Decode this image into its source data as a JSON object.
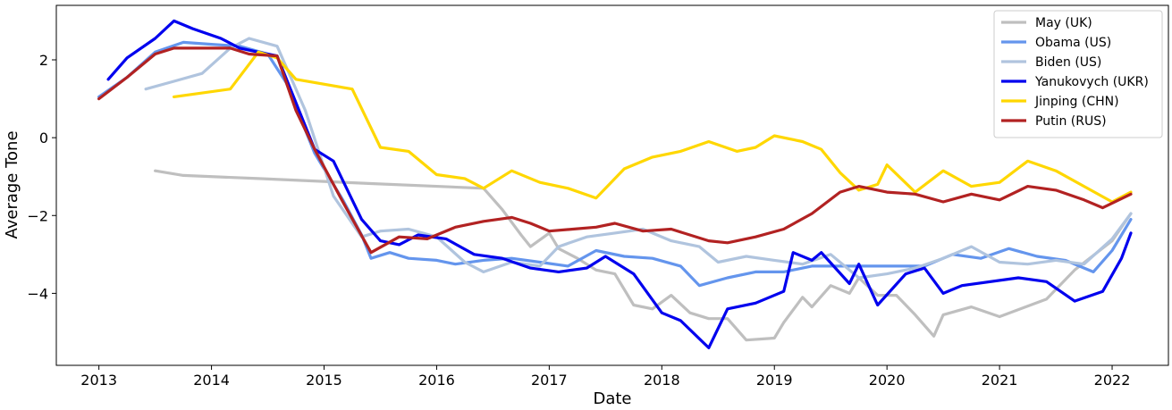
{
  "chart_data": {
    "type": "line",
    "title": "",
    "xlabel": "Date",
    "ylabel": "Average Tone",
    "xlim": [
      "2012-08-15",
      "2022-07-01"
    ],
    "ylim": [
      -5.85,
      3.4
    ],
    "x_ticks": [
      "2013",
      "2014",
      "2015",
      "2016",
      "2017",
      "2018",
      "2019",
      "2020",
      "2021",
      "2022"
    ],
    "y_ticks": [
      2,
      0,
      -2,
      -4
    ],
    "y_tick_labels": [
      "2",
      "0",
      "−2",
      "−4"
    ],
    "grid": false,
    "legend_position": "top-right",
    "series": [
      {
        "name": "May (UK)",
        "color": "#bfbfbf",
        "points": [
          [
            "2013-07",
            -0.85
          ],
          [
            "2013-10",
            -0.97
          ],
          [
            "2014-06",
            -1.05
          ],
          [
            "2015-06",
            -1.18
          ],
          [
            "2016-06",
            -1.3
          ],
          [
            "2016-08",
            -1.85
          ],
          [
            "2016-10",
            -2.5
          ],
          [
            "2016-11",
            -2.8
          ],
          [
            "2017-01",
            -2.45
          ],
          [
            "2017-02",
            -2.85
          ],
          [
            "2017-04",
            -3.1
          ],
          [
            "2017-06",
            -3.4
          ],
          [
            "2017-08",
            -3.5
          ],
          [
            "2017-10",
            -4.3
          ],
          [
            "2017-12",
            -4.4
          ],
          [
            "2018-02",
            -4.05
          ],
          [
            "2018-04",
            -4.5
          ],
          [
            "2018-06",
            -4.65
          ],
          [
            "2018-08",
            -4.65
          ],
          [
            "2018-10",
            -5.2
          ],
          [
            "2019-01",
            -5.15
          ],
          [
            "2019-02",
            -4.75
          ],
          [
            "2019-04",
            -4.1
          ],
          [
            "2019-05",
            -4.35
          ],
          [
            "2019-07",
            -3.8
          ],
          [
            "2019-09",
            -4.0
          ],
          [
            "2019-10",
            -3.6
          ],
          [
            "2019-12",
            -4.05
          ],
          [
            "2020-02",
            -4.05
          ],
          [
            "2020-04",
            -4.55
          ],
          [
            "2020-06",
            -5.1
          ],
          [
            "2020-07",
            -4.55
          ],
          [
            "2020-10",
            -4.35
          ],
          [
            "2021-01",
            -4.6
          ],
          [
            "2021-06",
            -4.15
          ],
          [
            "2021-09",
            -3.4
          ],
          [
            "2022-01",
            -2.65
          ],
          [
            "2022-03",
            -1.95
          ]
        ]
      },
      {
        "name": "Obama (US)",
        "color": "#6495ed",
        "points": [
          [
            "2013-01",
            1.05
          ],
          [
            "2013-04",
            1.55
          ],
          [
            "2013-07",
            2.2
          ],
          [
            "2013-10",
            2.45
          ],
          [
            "2014-01",
            2.4
          ],
          [
            "2014-04",
            2.35
          ],
          [
            "2014-07",
            2.15
          ],
          [
            "2014-09",
            1.4
          ],
          [
            "2014-12",
            -0.4
          ],
          [
            "2015-03",
            -1.6
          ],
          [
            "2015-05",
            -2.5
          ],
          [
            "2015-06",
            -3.1
          ],
          [
            "2015-08",
            -2.95
          ],
          [
            "2015-10",
            -3.1
          ],
          [
            "2016-01",
            -3.15
          ],
          [
            "2016-03",
            -3.25
          ],
          [
            "2016-06",
            -3.15
          ],
          [
            "2016-09",
            -3.1
          ],
          [
            "2016-12",
            -3.2
          ],
          [
            "2017-03",
            -3.3
          ],
          [
            "2017-06",
            -2.9
          ],
          [
            "2017-09",
            -3.05
          ],
          [
            "2017-12",
            -3.1
          ],
          [
            "2018-03",
            -3.3
          ],
          [
            "2018-05",
            -3.8
          ],
          [
            "2018-08",
            -3.6
          ],
          [
            "2018-11",
            -3.45
          ],
          [
            "2019-02",
            -3.45
          ],
          [
            "2019-05",
            -3.3
          ],
          [
            "2019-08",
            -3.3
          ],
          [
            "2019-11",
            -3.3
          ],
          [
            "2020-02",
            -3.3
          ],
          [
            "2020-05",
            -3.3
          ],
          [
            "2020-08",
            -3.0
          ],
          [
            "2020-11",
            -3.1
          ],
          [
            "2021-02",
            -2.85
          ],
          [
            "2021-05",
            -3.05
          ],
          [
            "2021-08",
            -3.15
          ],
          [
            "2021-11",
            -3.45
          ],
          [
            "2022-01",
            -2.9
          ],
          [
            "2022-03",
            -2.1
          ]
        ]
      },
      {
        "name": "Biden (US)",
        "color": "#b0c4de",
        "points": [
          [
            "2013-06",
            1.25
          ],
          [
            "2013-09",
            1.45
          ],
          [
            "2013-12",
            1.65
          ],
          [
            "2014-03",
            2.3
          ],
          [
            "2014-05",
            2.55
          ],
          [
            "2014-08",
            2.35
          ],
          [
            "2014-11",
            0.7
          ],
          [
            "2015-02",
            -1.5
          ],
          [
            "2015-05",
            -2.55
          ],
          [
            "2015-07",
            -2.4
          ],
          [
            "2015-10",
            -2.35
          ],
          [
            "2016-01",
            -2.55
          ],
          [
            "2016-04",
            -3.2
          ],
          [
            "2016-06",
            -3.45
          ],
          [
            "2016-09",
            -3.2
          ],
          [
            "2016-12",
            -3.3
          ],
          [
            "2017-02",
            -2.8
          ],
          [
            "2017-05",
            -2.55
          ],
          [
            "2017-08",
            -2.45
          ],
          [
            "2017-11",
            -2.35
          ],
          [
            "2018-02",
            -2.65
          ],
          [
            "2018-05",
            -2.8
          ],
          [
            "2018-07",
            -3.2
          ],
          [
            "2018-10",
            -3.05
          ],
          [
            "2019-01",
            -3.15
          ],
          [
            "2019-04",
            -3.25
          ],
          [
            "2019-07",
            -3.0
          ],
          [
            "2019-10",
            -3.6
          ],
          [
            "2020-01",
            -3.5
          ],
          [
            "2020-04",
            -3.35
          ],
          [
            "2020-07",
            -3.1
          ],
          [
            "2020-10",
            -2.8
          ],
          [
            "2021-01",
            -3.2
          ],
          [
            "2021-04",
            -3.25
          ],
          [
            "2021-07",
            -3.15
          ],
          [
            "2021-10",
            -3.25
          ],
          [
            "2022-01",
            -2.6
          ],
          [
            "2022-03",
            -1.95
          ]
        ]
      },
      {
        "name": "Yanukovych (UKR)",
        "color": "#0000ee",
        "points": [
          [
            "2013-02",
            1.5
          ],
          [
            "2013-04",
            2.05
          ],
          [
            "2013-07",
            2.55
          ],
          [
            "2013-09",
            3.0
          ],
          [
            "2013-11",
            2.8
          ],
          [
            "2014-02",
            2.55
          ],
          [
            "2014-04",
            2.3
          ],
          [
            "2014-06",
            2.2
          ],
          [
            "2014-08",
            2.1
          ],
          [
            "2014-10",
            0.9
          ],
          [
            "2014-12",
            -0.3
          ],
          [
            "2015-02",
            -0.6
          ],
          [
            "2015-05",
            -2.1
          ],
          [
            "2015-07",
            -2.65
          ],
          [
            "2015-09",
            -2.75
          ],
          [
            "2015-11",
            -2.5
          ],
          [
            "2016-02",
            -2.6
          ],
          [
            "2016-05",
            -3.0
          ],
          [
            "2016-08",
            -3.1
          ],
          [
            "2016-11",
            -3.35
          ],
          [
            "2017-02",
            -3.45
          ],
          [
            "2017-05",
            -3.35
          ],
          [
            "2017-07",
            -3.05
          ],
          [
            "2017-10",
            -3.5
          ],
          [
            "2018-01",
            -4.5
          ],
          [
            "2018-03",
            -4.7
          ],
          [
            "2018-06",
            -5.4
          ],
          [
            "2018-08",
            -4.4
          ],
          [
            "2018-11",
            -4.25
          ],
          [
            "2019-02",
            -3.95
          ],
          [
            "2019-03",
            -2.95
          ],
          [
            "2019-05",
            -3.15
          ],
          [
            "2019-06",
            -2.95
          ],
          [
            "2019-09",
            -3.75
          ],
          [
            "2019-10",
            -3.25
          ],
          [
            "2019-12",
            -4.3
          ],
          [
            "2020-03",
            -3.5
          ],
          [
            "2020-05",
            -3.35
          ],
          [
            "2020-07",
            -4.0
          ],
          [
            "2020-09",
            -3.8
          ],
          [
            "2021-03",
            -3.6
          ],
          [
            "2021-06",
            -3.7
          ],
          [
            "2021-09",
            -4.2
          ],
          [
            "2021-12",
            -3.95
          ],
          [
            "2022-02",
            -3.1
          ],
          [
            "2022-03",
            -2.45
          ]
        ]
      },
      {
        "name": "Jinping (CHN)",
        "color": "#ffd700",
        "points": [
          [
            "2013-09",
            1.05
          ],
          [
            "2014-03",
            1.25
          ],
          [
            "2014-06",
            2.2
          ],
          [
            "2014-08",
            2.05
          ],
          [
            "2014-10",
            1.5
          ],
          [
            "2015-04",
            1.25
          ],
          [
            "2015-07",
            -0.25
          ],
          [
            "2015-10",
            -0.35
          ],
          [
            "2016-01",
            -0.95
          ],
          [
            "2016-04",
            -1.05
          ],
          [
            "2016-06",
            -1.3
          ],
          [
            "2016-09",
            -0.85
          ],
          [
            "2016-12",
            -1.15
          ],
          [
            "2017-03",
            -1.3
          ],
          [
            "2017-06",
            -1.55
          ],
          [
            "2017-09",
            -0.8
          ],
          [
            "2017-12",
            -0.5
          ],
          [
            "2018-03",
            -0.35
          ],
          [
            "2018-06",
            -0.1
          ],
          [
            "2018-09",
            -0.35
          ],
          [
            "2018-11",
            -0.25
          ],
          [
            "2019-01",
            0.05
          ],
          [
            "2019-04",
            -0.1
          ],
          [
            "2019-06",
            -0.3
          ],
          [
            "2019-08",
            -0.9
          ],
          [
            "2019-10",
            -1.35
          ],
          [
            "2019-12",
            -1.2
          ],
          [
            "2020-01",
            -0.7
          ],
          [
            "2020-04",
            -1.4
          ],
          [
            "2020-07",
            -0.85
          ],
          [
            "2020-10",
            -1.25
          ],
          [
            "2021-01",
            -1.15
          ],
          [
            "2021-04",
            -0.6
          ],
          [
            "2021-07",
            -0.85
          ],
          [
            "2021-10",
            -1.25
          ],
          [
            "2022-01",
            -1.65
          ],
          [
            "2022-03",
            -1.4
          ]
        ]
      },
      {
        "name": "Putin (RUS)",
        "color": "#b22222",
        "points": [
          [
            "2013-01",
            1.0
          ],
          [
            "2013-04",
            1.55
          ],
          [
            "2013-07",
            2.15
          ],
          [
            "2013-09",
            2.3
          ],
          [
            "2014-01",
            2.3
          ],
          [
            "2014-03",
            2.3
          ],
          [
            "2014-05",
            2.15
          ],
          [
            "2014-08",
            2.1
          ],
          [
            "2014-10",
            0.7
          ],
          [
            "2014-12",
            -0.3
          ],
          [
            "2015-03",
            -1.65
          ],
          [
            "2015-06",
            -2.95
          ],
          [
            "2015-09",
            -2.55
          ],
          [
            "2015-12",
            -2.6
          ],
          [
            "2016-03",
            -2.3
          ],
          [
            "2016-06",
            -2.15
          ],
          [
            "2016-09",
            -2.05
          ],
          [
            "2016-11",
            -2.2
          ],
          [
            "2017-01",
            -2.4
          ],
          [
            "2017-06",
            -2.3
          ],
          [
            "2017-08",
            -2.2
          ],
          [
            "2017-11",
            -2.4
          ],
          [
            "2018-02",
            -2.35
          ],
          [
            "2018-06",
            -2.65
          ],
          [
            "2018-08",
            -2.7
          ],
          [
            "2018-11",
            -2.55
          ],
          [
            "2019-02",
            -2.35
          ],
          [
            "2019-05",
            -1.95
          ],
          [
            "2019-08",
            -1.4
          ],
          [
            "2019-10",
            -1.25
          ],
          [
            "2020-01",
            -1.4
          ],
          [
            "2020-04",
            -1.45
          ],
          [
            "2020-07",
            -1.65
          ],
          [
            "2020-10",
            -1.45
          ],
          [
            "2021-01",
            -1.6
          ],
          [
            "2021-04",
            -1.25
          ],
          [
            "2021-07",
            -1.35
          ],
          [
            "2021-10",
            -1.6
          ],
          [
            "2021-12",
            -1.8
          ],
          [
            "2022-03",
            -1.45
          ]
        ]
      }
    ]
  }
}
